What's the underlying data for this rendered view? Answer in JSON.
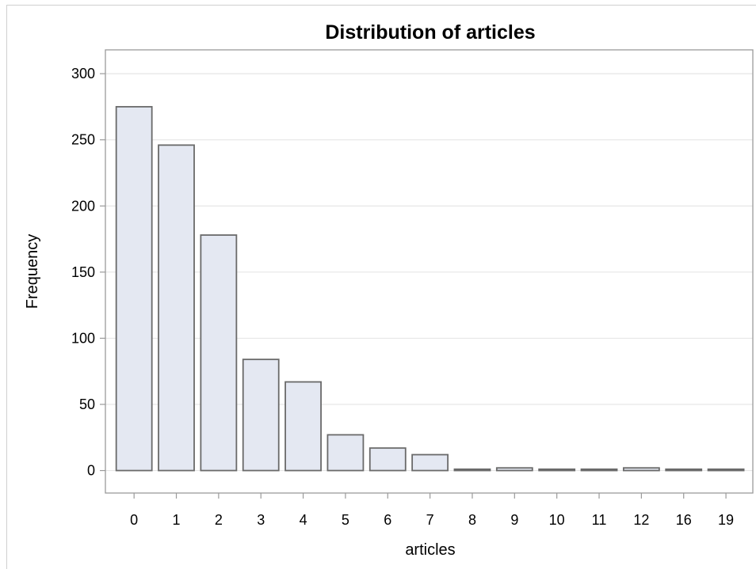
{
  "chart_data": {
    "type": "bar",
    "title": "Distribution of articles",
    "xlabel": "articles",
    "ylabel": "Frequency",
    "categories": [
      "0",
      "1",
      "2",
      "3",
      "4",
      "5",
      "6",
      "7",
      "8",
      "9",
      "10",
      "11",
      "12",
      "16",
      "19"
    ],
    "values": [
      275,
      246,
      178,
      84,
      67,
      27,
      17,
      12,
      1,
      2,
      1,
      1,
      2,
      1,
      1
    ],
    "ylim": [
      -17,
      318
    ],
    "yticks": [
      0,
      50,
      100,
      150,
      200,
      250,
      300
    ],
    "grid": true,
    "colors": {
      "bar_fill": "#e4e8f2",
      "bar_stroke": "#6a6a6a",
      "grid": "#e6e6e6",
      "axis": "#9a9a9a"
    }
  }
}
